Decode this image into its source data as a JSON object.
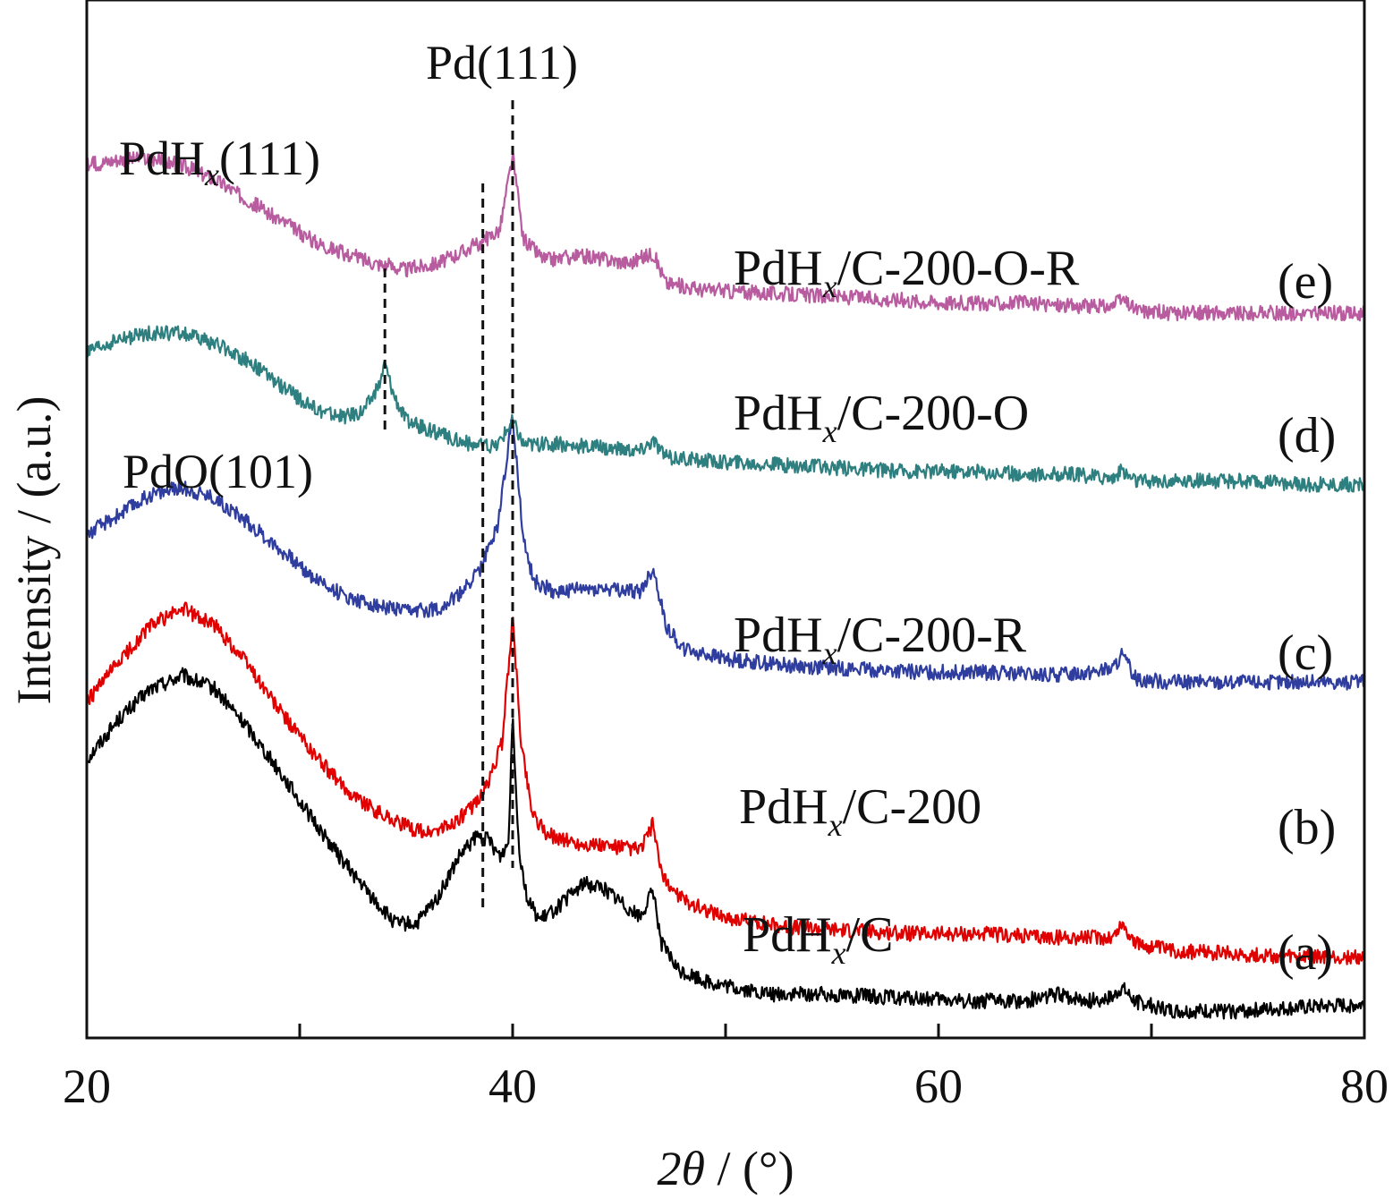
{
  "chart_data": {
    "type": "line",
    "xlabel": {
      "italic": "2θ",
      "rest": " / (°)"
    },
    "ylabel": "Intensity / (a.u.)",
    "xlim": [
      20,
      80
    ],
    "xticks": [
      20,
      40,
      60,
      80
    ],
    "x_minor_ticks": [
      30,
      50,
      70
    ],
    "y_ticks_shown": false,
    "grid": false,
    "annotations": [
      {
        "text": "Pd(111)",
        "x": 40.0
      },
      {
        "base": "PdH",
        "sub": "x",
        "rest": "(111)",
        "x": 38.6
      },
      {
        "text": "PdO(101)",
        "x": 34.0
      }
    ],
    "series": [
      {
        "name": {
          "base": "PdH",
          "sub": "x",
          "rest": "/C"
        },
        "tag": "(a)",
        "color": "#000000",
        "points": [
          [
            20,
            0.75
          ],
          [
            21.5,
            0.87
          ],
          [
            23,
            0.96
          ],
          [
            24.5,
            1.0
          ],
          [
            26,
            0.96
          ],
          [
            27.5,
            0.85
          ],
          [
            29,
            0.72
          ],
          [
            30.5,
            0.58
          ],
          [
            32,
            0.45
          ],
          [
            33.5,
            0.33
          ],
          [
            34.5,
            0.26
          ],
          [
            35.5,
            0.26
          ],
          [
            36.5,
            0.34
          ],
          [
            37.5,
            0.46
          ],
          [
            38.3,
            0.52
          ],
          [
            38.9,
            0.51
          ],
          [
            39.4,
            0.46
          ],
          [
            39.8,
            0.5
          ],
          [
            40.0,
            0.89
          ],
          [
            40.3,
            0.48
          ],
          [
            40.7,
            0.33
          ],
          [
            41.3,
            0.27
          ],
          [
            42.3,
            0.32
          ],
          [
            43.3,
            0.38
          ],
          [
            44.2,
            0.37
          ],
          [
            45.2,
            0.32
          ],
          [
            46.0,
            0.28
          ],
          [
            46.6,
            0.36
          ],
          [
            47.0,
            0.2
          ],
          [
            47.8,
            0.12
          ],
          [
            49.5,
            0.08
          ],
          [
            52,
            0.05
          ],
          [
            55,
            0.05
          ],
          [
            58,
            0.04
          ],
          [
            61,
            0.03
          ],
          [
            64,
            0.03
          ],
          [
            65.5,
            0.05
          ],
          [
            67,
            0.03
          ],
          [
            68.2,
            0.04
          ],
          [
            68.6,
            0.07
          ],
          [
            69.2,
            0.03
          ],
          [
            71,
            0.0
          ],
          [
            74,
            0.0
          ],
          [
            77,
            0.01
          ],
          [
            80,
            0.02
          ]
        ]
      },
      {
        "name": {
          "base": "PdH",
          "sub": "x",
          "rest": "/C-200"
        },
        "tag": "(b)",
        "color": "#e00000",
        "points": [
          [
            20,
            0.92
          ],
          [
            21.5,
            1.04
          ],
          [
            23,
            1.15
          ],
          [
            24.5,
            1.2
          ],
          [
            26,
            1.15
          ],
          [
            27.5,
            1.04
          ],
          [
            29,
            0.9
          ],
          [
            30.5,
            0.78
          ],
          [
            32,
            0.67
          ],
          [
            33.5,
            0.6
          ],
          [
            35,
            0.55
          ],
          [
            36,
            0.53
          ],
          [
            37,
            0.55
          ],
          [
            38,
            0.6
          ],
          [
            38.8,
            0.67
          ],
          [
            39.5,
            0.8
          ],
          [
            40.0,
            1.17
          ],
          [
            40.4,
            0.8
          ],
          [
            40.9,
            0.6
          ],
          [
            41.5,
            0.53
          ],
          [
            43,
            0.5
          ],
          [
            44.5,
            0.49
          ],
          [
            46.0,
            0.48
          ],
          [
            46.6,
            0.56
          ],
          [
            47.0,
            0.4
          ],
          [
            48,
            0.33
          ],
          [
            50,
            0.28
          ],
          [
            53,
            0.25
          ],
          [
            56,
            0.24
          ],
          [
            59,
            0.23
          ],
          [
            62,
            0.23
          ],
          [
            65,
            0.22
          ],
          [
            67,
            0.22
          ],
          [
            68.2,
            0.22
          ],
          [
            68.6,
            0.26
          ],
          [
            69.3,
            0.2
          ],
          [
            71,
            0.18
          ],
          [
            74,
            0.17
          ],
          [
            77,
            0.16
          ],
          [
            80,
            0.16
          ]
        ]
      },
      {
        "name": {
          "base": "PdH",
          "sub": "x",
          "rest": "/C-200-R"
        },
        "tag": "(c)",
        "color": "#2e3d9e",
        "points": [
          [
            20,
            1.42
          ],
          [
            21.5,
            1.48
          ],
          [
            23,
            1.54
          ],
          [
            24.5,
            1.56
          ],
          [
            26,
            1.53
          ],
          [
            27.5,
            1.46
          ],
          [
            29,
            1.38
          ],
          [
            30.5,
            1.3
          ],
          [
            32,
            1.24
          ],
          [
            33.5,
            1.21
          ],
          [
            35,
            1.19
          ],
          [
            36.5,
            1.2
          ],
          [
            37.5,
            1.24
          ],
          [
            38.5,
            1.32
          ],
          [
            39.3,
            1.45
          ],
          [
            40.0,
            1.78
          ],
          [
            40.5,
            1.4
          ],
          [
            41,
            1.28
          ],
          [
            42,
            1.25
          ],
          [
            44,
            1.26
          ],
          [
            46.0,
            1.25
          ],
          [
            46.6,
            1.32
          ],
          [
            47.2,
            1.15
          ],
          [
            48,
            1.08
          ],
          [
            50,
            1.05
          ],
          [
            53,
            1.03
          ],
          [
            56,
            1.02
          ],
          [
            59,
            1.01
          ],
          [
            62,
            1.01
          ],
          [
            65,
            1.0
          ],
          [
            67,
            1.01
          ],
          [
            68.2,
            1.02
          ],
          [
            68.6,
            1.06
          ],
          [
            69.3,
            0.99
          ],
          [
            71,
            0.98
          ],
          [
            74,
            0.98
          ],
          [
            77,
            0.98
          ],
          [
            80,
            0.98
          ]
        ]
      },
      {
        "name": {
          "base": "PdH",
          "sub": "x",
          "rest": "/C-200-O"
        },
        "tag": "(d)",
        "color": "#2e7f7f",
        "points": [
          [
            20,
            1.96
          ],
          [
            21.5,
            2.0
          ],
          [
            23,
            2.02
          ],
          [
            24.5,
            2.02
          ],
          [
            26,
            1.99
          ],
          [
            27.5,
            1.94
          ],
          [
            29,
            1.87
          ],
          [
            30.5,
            1.8
          ],
          [
            32,
            1.77
          ],
          [
            33,
            1.79
          ],
          [
            33.7,
            1.86
          ],
          [
            34.0,
            1.93
          ],
          [
            34.4,
            1.84
          ],
          [
            35,
            1.76
          ],
          [
            36.5,
            1.72
          ],
          [
            38,
            1.69
          ],
          [
            39.2,
            1.68
          ],
          [
            40.0,
            1.76
          ],
          [
            40.5,
            1.69
          ],
          [
            42,
            1.69
          ],
          [
            44,
            1.68
          ],
          [
            46.0,
            1.67
          ],
          [
            46.6,
            1.7
          ],
          [
            47.2,
            1.65
          ],
          [
            49,
            1.64
          ],
          [
            52,
            1.63
          ],
          [
            55,
            1.62
          ],
          [
            58,
            1.61
          ],
          [
            61,
            1.61
          ],
          [
            64,
            1.6
          ],
          [
            66,
            1.6
          ],
          [
            68.2,
            1.59
          ],
          [
            68.6,
            1.61
          ],
          [
            69.3,
            1.58
          ],
          [
            71,
            1.58
          ],
          [
            74,
            1.58
          ],
          [
            77,
            1.57
          ],
          [
            80,
            1.57
          ]
        ]
      },
      {
        "name": {
          "base": "PdH",
          "sub": "x",
          "rest": "/C-200-O-R"
        },
        "tag": "(e)",
        "color": "#b85b9f",
        "points": [
          [
            20,
            2.52
          ],
          [
            21.5,
            2.54
          ],
          [
            23,
            2.54
          ],
          [
            24.5,
            2.52
          ],
          [
            26,
            2.48
          ],
          [
            27.5,
            2.42
          ],
          [
            29,
            2.36
          ],
          [
            30.5,
            2.3
          ],
          [
            32,
            2.26
          ],
          [
            33.5,
            2.23
          ],
          [
            35,
            2.21
          ],
          [
            36.5,
            2.23
          ],
          [
            37.5,
            2.26
          ],
          [
            38.5,
            2.29
          ],
          [
            39.4,
            2.33
          ],
          [
            40.0,
            2.55
          ],
          [
            40.5,
            2.3
          ],
          [
            41.5,
            2.24
          ],
          [
            43.5,
            2.25
          ],
          [
            45.5,
            2.23
          ],
          [
            46.6,
            2.26
          ],
          [
            47.2,
            2.17
          ],
          [
            49,
            2.15
          ],
          [
            52,
            2.14
          ],
          [
            55,
            2.13
          ],
          [
            58,
            2.12
          ],
          [
            61,
            2.11
          ],
          [
            64,
            2.11
          ],
          [
            67,
            2.1
          ],
          [
            68.2,
            2.1
          ],
          [
            68.6,
            2.12
          ],
          [
            69.3,
            2.09
          ],
          [
            71,
            2.08
          ],
          [
            74,
            2.08
          ],
          [
            77,
            2.08
          ],
          [
            80,
            2.08
          ]
        ]
      }
    ]
  }
}
